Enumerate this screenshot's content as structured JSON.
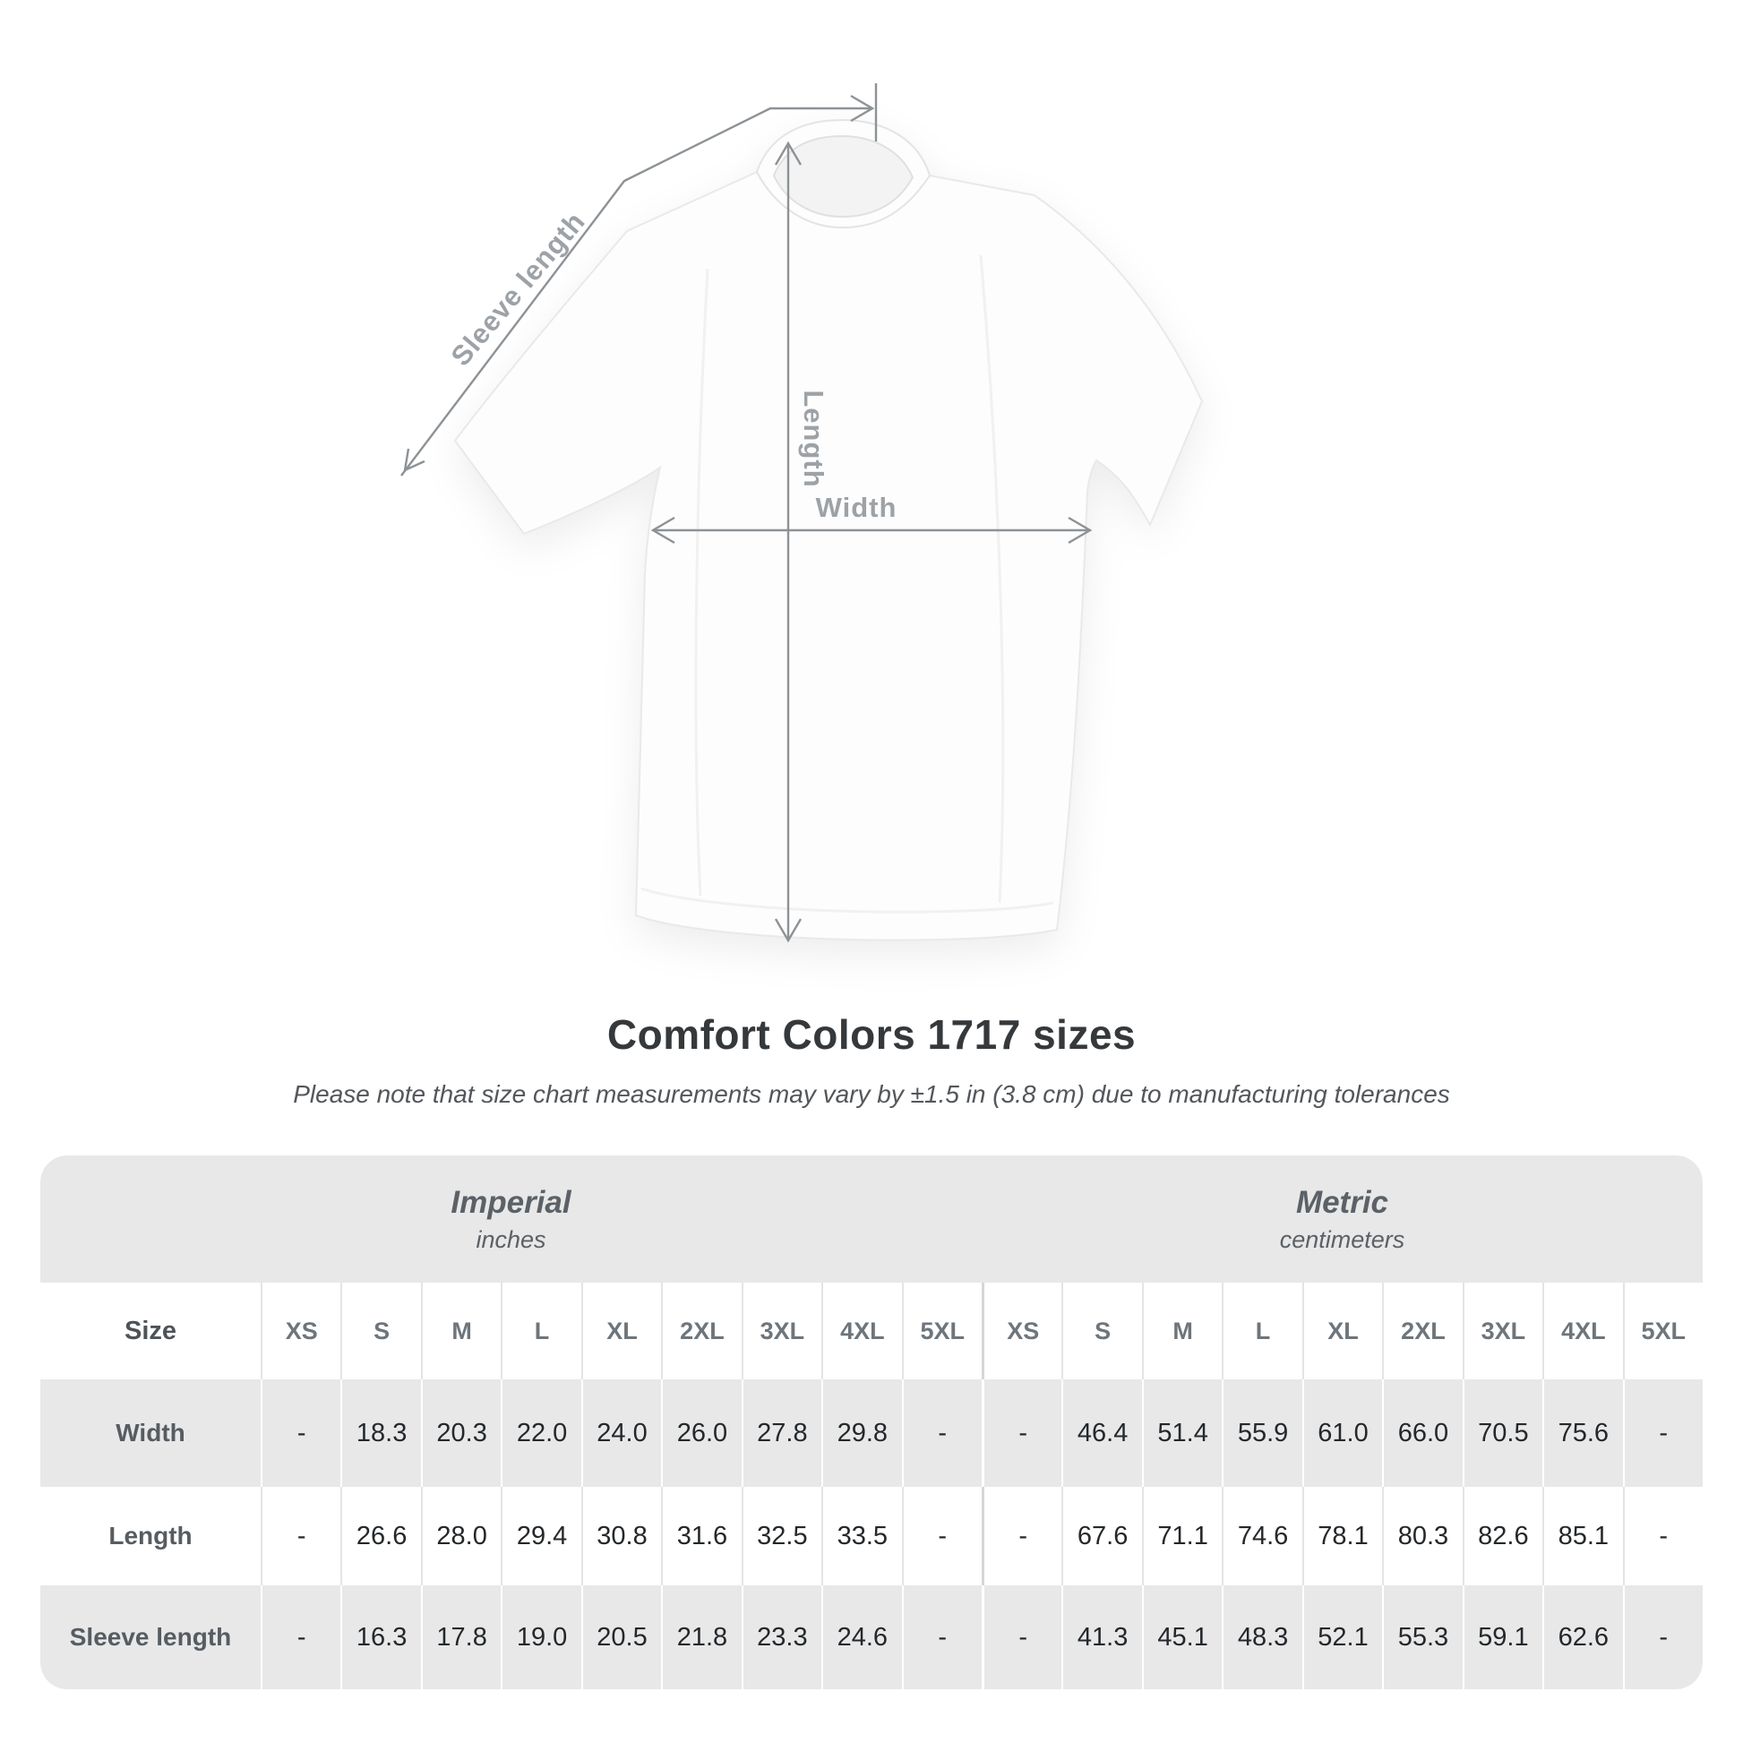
{
  "diagram": {
    "sleeve_label": "Sleeve length",
    "length_label": "Length",
    "width_label": "Width",
    "line_color": "#8d9296",
    "label_color": "#9da2a7"
  },
  "title": "Comfort Colors 1717 sizes",
  "subtitle": "Please note that size chart measurements may vary by ±1.5 in (3.8 cm) due to manufacturing tolerances",
  "table": {
    "size_label": "Size",
    "sections": [
      {
        "name": "Imperial",
        "unit": "inches"
      },
      {
        "name": "Metric",
        "unit": "centimeters"
      }
    ],
    "sizes": [
      "XS",
      "S",
      "M",
      "L",
      "XL",
      "2XL",
      "3XL",
      "4XL",
      "5XL"
    ],
    "rows": [
      {
        "label": "Width",
        "imperial": [
          "-",
          "18.3",
          "20.3",
          "22.0",
          "24.0",
          "26.0",
          "27.8",
          "29.8",
          "-"
        ],
        "metric": [
          "-",
          "46.4",
          "51.4",
          "55.9",
          "61.0",
          "66.0",
          "70.5",
          "75.6",
          "-"
        ]
      },
      {
        "label": "Length",
        "imperial": [
          "-",
          "26.6",
          "28.0",
          "29.4",
          "30.8",
          "31.6",
          "32.5",
          "33.5",
          "-"
        ],
        "metric": [
          "-",
          "67.6",
          "71.1",
          "74.6",
          "78.1",
          "80.3",
          "82.6",
          "85.1",
          "-"
        ]
      },
      {
        "label": "Sleeve length",
        "imperial": [
          "-",
          "16.3",
          "17.8",
          "19.0",
          "20.5",
          "21.8",
          "23.3",
          "24.6",
          "-"
        ],
        "metric": [
          "-",
          "41.3",
          "45.1",
          "48.3",
          "52.1",
          "55.3",
          "59.1",
          "62.6",
          "-"
        ]
      }
    ]
  }
}
